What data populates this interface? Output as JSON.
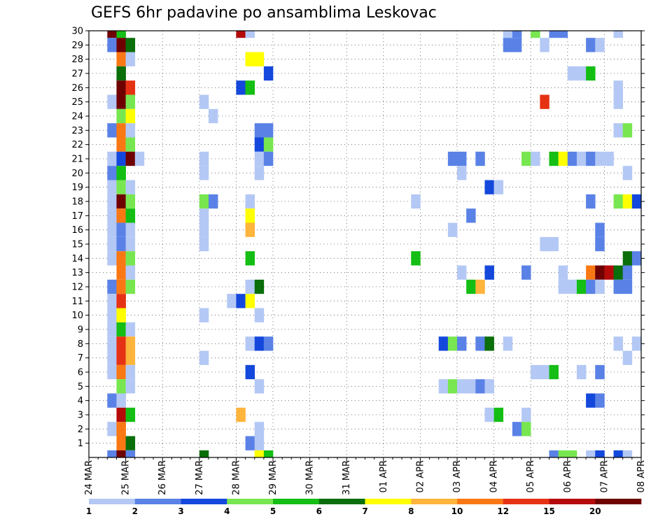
{
  "chart_data": {
    "type": "heatmap",
    "title": "GEFS 6hr padavine po ansamblima Leskovac",
    "xlabel": "",
    "ylabel": "",
    "x_tick_labels": [
      "24 MAR",
      "25 MAR",
      "26 MAR",
      "27 MAR",
      "28 MAR",
      "29 MAR",
      "30 MAR",
      "31 MAR",
      "01 APR",
      "02 APR",
      "03 APR",
      "04 APR",
      "05 APR",
      "06 APR",
      "07 APR",
      "08 APR"
    ],
    "x_range_days": [
      0,
      15
    ],
    "x_step_hours": 6,
    "y_tick_labels": [
      "1",
      "2",
      "3",
      "4",
      "5",
      "6",
      "7",
      "8",
      "9",
      "10",
      "11",
      "12",
      "13",
      "14",
      "15",
      "16",
      "17",
      "18",
      "19",
      "20",
      "21",
      "22",
      "23",
      "24",
      "25",
      "26",
      "27",
      "28",
      "29",
      "30"
    ],
    "y_range": [
      0,
      30
    ],
    "grid": true,
    "grid_style": "dotted",
    "legend": {
      "placement": "bottom",
      "labels": [
        "1",
        "2",
        "3",
        "4",
        "5",
        "6",
        "7",
        "8",
        "10",
        "12",
        "15",
        "20"
      ],
      "colors": [
        "#b4c8f5",
        "#5a82e6",
        "#1448dc",
        "#78e650",
        "#14be14",
        "#0a6e0a",
        "#ffff00",
        "#ffb43c",
        "#fa7814",
        "#e63214",
        "#b40a0a",
        "#6e0000"
      ]
    },
    "colors": [
      "#b4c8f5",
      "#5a82e6",
      "#1448dc",
      "#78e650",
      "#14be14",
      "#0a6e0a",
      "#ffff00",
      "#ffb43c",
      "#fa7814",
      "#e63214",
      "#b40a0a",
      "#6e0000"
    ],
    "cell_format": "[time_index_6h_from_24MAR_00, member_row, color_class_index]",
    "cells": [
      [
        2,
        30,
        11
      ],
      [
        3,
        30,
        4
      ],
      [
        16,
        30,
        10
      ],
      [
        17,
        30,
        0
      ],
      [
        45,
        30,
        0
      ],
      [
        46,
        30,
        1
      ],
      [
        48,
        30,
        3
      ],
      [
        50,
        30,
        1
      ],
      [
        51,
        30,
        1
      ],
      [
        57,
        30,
        0
      ],
      [
        2,
        29,
        1
      ],
      [
        3,
        29,
        11
      ],
      [
        4,
        29,
        5
      ],
      [
        45,
        29,
        1
      ],
      [
        46,
        29,
        1
      ],
      [
        49,
        29,
        0
      ],
      [
        54,
        29,
        1
      ],
      [
        55,
        29,
        0
      ],
      [
        3,
        28,
        8
      ],
      [
        4,
        28,
        0
      ],
      [
        17,
        28,
        6
      ],
      [
        18,
        28,
        6
      ],
      [
        3,
        27,
        5
      ],
      [
        19,
        27,
        2
      ],
      [
        52,
        27,
        0
      ],
      [
        53,
        27,
        0
      ],
      [
        54,
        27,
        4
      ],
      [
        3,
        26,
        11
      ],
      [
        4,
        26,
        9
      ],
      [
        16,
        26,
        2
      ],
      [
        17,
        26,
        4
      ],
      [
        57,
        26,
        0
      ],
      [
        2,
        25,
        0
      ],
      [
        3,
        25,
        11
      ],
      [
        4,
        25,
        3
      ],
      [
        12,
        25,
        0
      ],
      [
        49,
        25,
        9
      ],
      [
        57,
        25,
        0
      ],
      [
        3,
        24,
        3
      ],
      [
        4,
        24,
        6
      ],
      [
        13,
        24,
        0
      ],
      [
        2,
        23,
        1
      ],
      [
        3,
        23,
        8
      ],
      [
        4,
        23,
        0
      ],
      [
        18,
        23,
        1
      ],
      [
        19,
        23,
        1
      ],
      [
        57,
        23,
        0
      ],
      [
        58,
        23,
        3
      ],
      [
        3,
        22,
        8
      ],
      [
        4,
        22,
        3
      ],
      [
        18,
        22,
        2
      ],
      [
        19,
        22,
        3
      ],
      [
        2,
        21,
        0
      ],
      [
        3,
        21,
        2
      ],
      [
        4,
        21,
        11
      ],
      [
        5,
        21,
        0
      ],
      [
        12,
        21,
        0
      ],
      [
        18,
        21,
        0
      ],
      [
        19,
        21,
        1
      ],
      [
        39,
        21,
        1
      ],
      [
        40,
        21,
        1
      ],
      [
        42,
        21,
        1
      ],
      [
        47,
        21,
        3
      ],
      [
        48,
        21,
        0
      ],
      [
        50,
        21,
        4
      ],
      [
        51,
        21,
        6
      ],
      [
        52,
        21,
        1
      ],
      [
        53,
        21,
        0
      ],
      [
        54,
        21,
        1
      ],
      [
        55,
        21,
        0
      ],
      [
        56,
        21,
        0
      ],
      [
        2,
        20,
        1
      ],
      [
        3,
        20,
        4
      ],
      [
        12,
        20,
        0
      ],
      [
        18,
        20,
        0
      ],
      [
        40,
        20,
        0
      ],
      [
        58,
        20,
        0
      ],
      [
        2,
        19,
        0
      ],
      [
        3,
        19,
        3
      ],
      [
        4,
        19,
        0
      ],
      [
        43,
        19,
        2
      ],
      [
        44,
        19,
        0
      ],
      [
        2,
        18,
        0
      ],
      [
        3,
        18,
        11
      ],
      [
        4,
        18,
        3
      ],
      [
        12,
        18,
        3
      ],
      [
        13,
        18,
        1
      ],
      [
        17,
        18,
        0
      ],
      [
        35,
        18,
        0
      ],
      [
        54,
        18,
        1
      ],
      [
        57,
        18,
        3
      ],
      [
        58,
        18,
        6
      ],
      [
        59,
        18,
        2
      ],
      [
        2,
        17,
        0
      ],
      [
        3,
        17,
        8
      ],
      [
        4,
        17,
        4
      ],
      [
        12,
        17,
        0
      ],
      [
        17,
        17,
        6
      ],
      [
        41,
        17,
        1
      ],
      [
        2,
        16,
        0
      ],
      [
        3,
        16,
        1
      ],
      [
        4,
        16,
        0
      ],
      [
        12,
        16,
        0
      ],
      [
        17,
        16,
        7
      ],
      [
        39,
        16,
        0
      ],
      [
        55,
        16,
        1
      ],
      [
        2,
        15,
        0
      ],
      [
        3,
        15,
        1
      ],
      [
        4,
        15,
        0
      ],
      [
        12,
        15,
        0
      ],
      [
        49,
        15,
        0
      ],
      [
        50,
        15,
        0
      ],
      [
        55,
        15,
        1
      ],
      [
        2,
        14,
        0
      ],
      [
        3,
        14,
        8
      ],
      [
        4,
        14,
        3
      ],
      [
        17,
        14,
        4
      ],
      [
        35,
        14,
        4
      ],
      [
        58,
        14,
        5
      ],
      [
        59,
        14,
        1
      ],
      [
        3,
        13,
        8
      ],
      [
        4,
        13,
        0
      ],
      [
        40,
        13,
        0
      ],
      [
        43,
        13,
        2
      ],
      [
        47,
        13,
        1
      ],
      [
        51,
        13,
        0
      ],
      [
        54,
        13,
        8
      ],
      [
        55,
        13,
        11
      ],
      [
        56,
        13,
        10
      ],
      [
        57,
        13,
        5
      ],
      [
        58,
        13,
        1
      ],
      [
        2,
        12,
        1
      ],
      [
        3,
        12,
        8
      ],
      [
        4,
        12,
        3
      ],
      [
        17,
        12,
        0
      ],
      [
        18,
        12,
        5
      ],
      [
        41,
        12,
        4
      ],
      [
        42,
        12,
        7
      ],
      [
        51,
        12,
        0
      ],
      [
        52,
        12,
        0
      ],
      [
        53,
        12,
        4
      ],
      [
        54,
        12,
        1
      ],
      [
        55,
        12,
        0
      ],
      [
        57,
        12,
        1
      ],
      [
        58,
        12,
        1
      ],
      [
        2,
        11,
        0
      ],
      [
        3,
        11,
        9
      ],
      [
        15,
        11,
        0
      ],
      [
        16,
        11,
        2
      ],
      [
        17,
        11,
        6
      ],
      [
        2,
        10,
        0
      ],
      [
        3,
        10,
        6
      ],
      [
        12,
        10,
        0
      ],
      [
        18,
        10,
        0
      ],
      [
        2,
        9,
        0
      ],
      [
        3,
        9,
        4
      ],
      [
        4,
        9,
        0
      ],
      [
        2,
        8,
        0
      ],
      [
        3,
        8,
        9
      ],
      [
        4,
        8,
        7
      ],
      [
        17,
        8,
        0
      ],
      [
        18,
        8,
        2
      ],
      [
        19,
        8,
        1
      ],
      [
        38,
        8,
        2
      ],
      [
        39,
        8,
        3
      ],
      [
        40,
        8,
        1
      ],
      [
        42,
        8,
        1
      ],
      [
        43,
        8,
        5
      ],
      [
        45,
        8,
        0
      ],
      [
        57,
        8,
        0
      ],
      [
        59,
        8,
        0
      ],
      [
        2,
        7,
        0
      ],
      [
        3,
        7,
        9
      ],
      [
        4,
        7,
        7
      ],
      [
        12,
        7,
        0
      ],
      [
        58,
        7,
        0
      ],
      [
        2,
        6,
        0
      ],
      [
        3,
        6,
        8
      ],
      [
        4,
        6,
        0
      ],
      [
        17,
        6,
        2
      ],
      [
        48,
        6,
        0
      ],
      [
        49,
        6,
        0
      ],
      [
        50,
        6,
        4
      ],
      [
        53,
        6,
        0
      ],
      [
        55,
        6,
        1
      ],
      [
        3,
        5,
        3
      ],
      [
        4,
        5,
        0
      ],
      [
        18,
        5,
        0
      ],
      [
        38,
        5,
        0
      ],
      [
        39,
        5,
        3
      ],
      [
        40,
        5,
        0
      ],
      [
        41,
        5,
        0
      ],
      [
        42,
        5,
        1
      ],
      [
        43,
        5,
        0
      ],
      [
        2,
        4,
        1
      ],
      [
        3,
        4,
        0
      ],
      [
        54,
        4,
        2
      ],
      [
        55,
        4,
        1
      ],
      [
        3,
        3,
        10
      ],
      [
        4,
        3,
        4
      ],
      [
        16,
        3,
        7
      ],
      [
        43,
        3,
        0
      ],
      [
        44,
        3,
        4
      ],
      [
        47,
        3,
        0
      ],
      [
        2,
        2,
        0
      ],
      [
        3,
        2,
        8
      ],
      [
        18,
        2,
        0
      ],
      [
        46,
        2,
        1
      ],
      [
        47,
        2,
        3
      ],
      [
        3,
        1,
        8
      ],
      [
        4,
        1,
        5
      ],
      [
        17,
        1,
        1
      ],
      [
        18,
        1,
        0
      ],
      [
        2,
        0,
        1
      ],
      [
        3,
        0,
        11
      ],
      [
        4,
        0,
        1
      ],
      [
        12,
        0,
        5
      ],
      [
        18,
        0,
        6
      ],
      [
        19,
        0,
        4
      ],
      [
        50,
        0,
        1
      ],
      [
        51,
        0,
        3
      ],
      [
        52,
        0,
        3
      ],
      [
        54,
        0,
        0
      ],
      [
        55,
        0,
        2
      ],
      [
        57,
        0,
        2
      ],
      [
        58,
        0,
        0
      ]
    ]
  }
}
